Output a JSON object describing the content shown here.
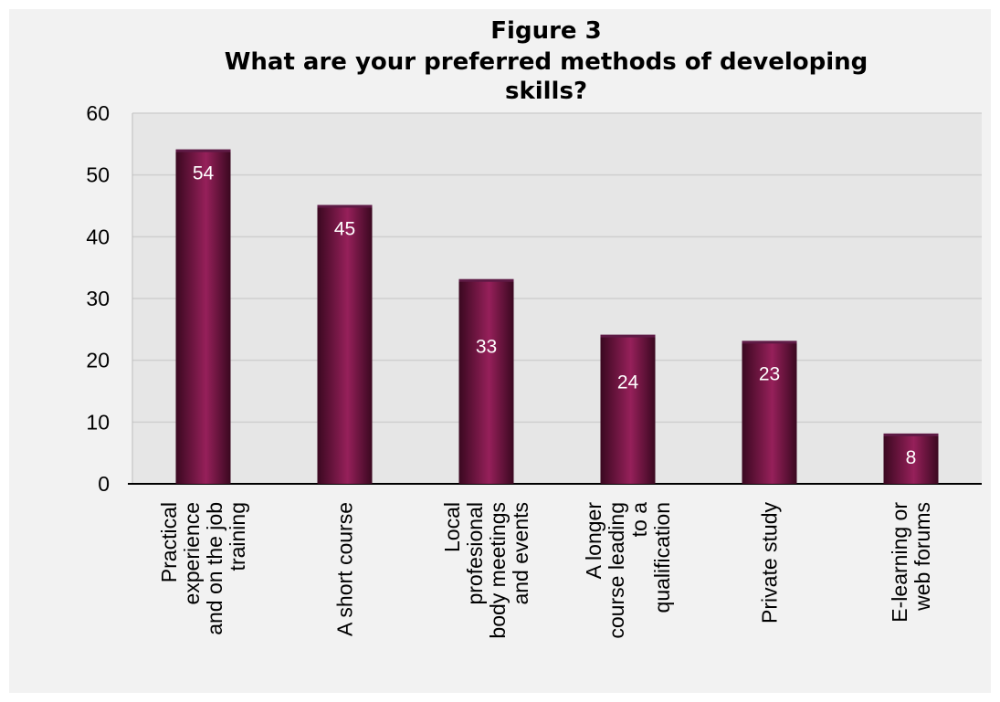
{
  "chart_data": {
    "type": "bar",
    "title": "Figure 3",
    "subtitle": [
      "What are your preferred methods of developing",
      "skills?"
    ],
    "categories": [
      [
        "Practical",
        "experience",
        "and on the job",
        "training"
      ],
      [
        "A short course"
      ],
      [
        "Local",
        "profesional",
        "body meetings",
        "and events"
      ],
      [
        "A longer",
        "course leading",
        "to a",
        "qualification"
      ],
      [
        "Private study"
      ],
      [
        "E-learning or",
        "web forums"
      ]
    ],
    "values": [
      54,
      45,
      33,
      24,
      23,
      8
    ],
    "ylim": [
      0,
      60
    ],
    "yticks": [
      0,
      10,
      20,
      30,
      40,
      50,
      60
    ],
    "grid": true,
    "data_labels": true,
    "colors": {
      "bar_edge": "#3a0820",
      "bar_mid": "#96205a",
      "bar_top": "#5e1a45",
      "plot_bg": "#e6e6e6",
      "outer_bg": "#f2f2f2",
      "grid": "#cfcfcf"
    }
  }
}
